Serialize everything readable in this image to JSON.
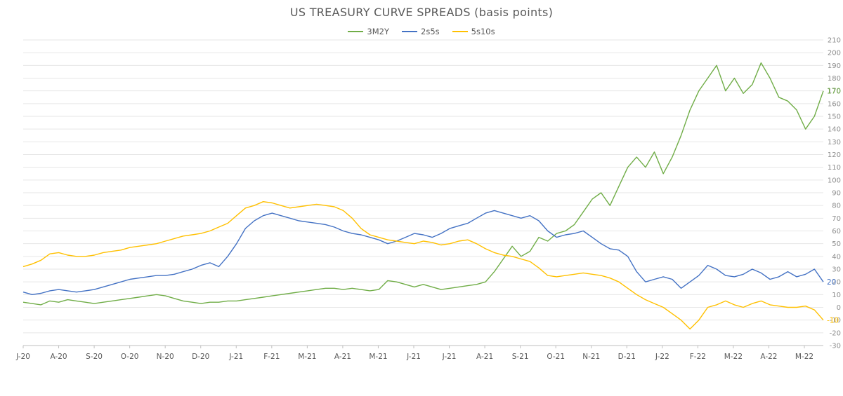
{
  "chart_data": {
    "type": "line",
    "title": "US TREASURY CURVE SPREADS (basis points)",
    "xlabel": "",
    "ylabel": "",
    "ylim": [
      -30,
      210
    ],
    "y_ticks": [
      -30,
      -20,
      -10,
      0,
      10,
      20,
      30,
      40,
      50,
      60,
      70,
      80,
      90,
      100,
      110,
      120,
      130,
      140,
      150,
      160,
      170,
      180,
      190,
      200,
      210
    ],
    "x_ticks": [
      "J-20",
      "A-20",
      "S-20",
      "O-20",
      "N-20",
      "D-20",
      "J-21",
      "F-21",
      "M-21",
      "A-21",
      "M-21",
      "J-21",
      "J-21",
      "A-21",
      "S-21",
      "O-21",
      "N-21",
      "D-21",
      "J-22",
      "F-22",
      "M-22",
      "A-22",
      "M-22"
    ],
    "grid": true,
    "legend_position": "top-center",
    "series": [
      {
        "name": "3M2Y",
        "color": "#70ad47",
        "end_label": "170",
        "values": [
          4,
          3,
          2,
          5,
          4,
          6,
          5,
          4,
          3,
          4,
          5,
          6,
          7,
          8,
          9,
          10,
          9,
          7,
          5,
          4,
          3,
          4,
          4,
          5,
          5,
          6,
          7,
          8,
          9,
          10,
          11,
          12,
          13,
          14,
          15,
          15,
          14,
          15,
          14,
          13,
          14,
          21,
          20,
          18,
          16,
          18,
          16,
          14,
          15,
          16,
          17,
          18,
          20,
          28,
          38,
          48,
          40,
          44,
          55,
          52,
          58,
          60,
          65,
          75,
          85,
          90,
          80,
          95,
          110,
          118,
          110,
          122,
          105,
          118,
          135,
          155,
          170,
          180,
          190,
          170,
          180,
          168,
          175,
          192,
          180,
          165,
          162,
          155,
          140,
          150,
          170
        ]
      },
      {
        "name": "2s5s",
        "color": "#4472c4",
        "end_label": "20",
        "values": [
          12,
          10,
          11,
          13,
          14,
          13,
          12,
          13,
          14,
          16,
          18,
          20,
          22,
          23,
          24,
          25,
          25,
          26,
          28,
          30,
          33,
          35,
          32,
          40,
          50,
          62,
          68,
          72,
          74,
          72,
          70,
          68,
          67,
          66,
          65,
          63,
          60,
          58,
          57,
          55,
          53,
          50,
          52,
          55,
          58,
          57,
          55,
          58,
          62,
          64,
          66,
          70,
          74,
          76,
          74,
          72,
          70,
          72,
          68,
          60,
          55,
          57,
          58,
          60,
          55,
          50,
          46,
          45,
          40,
          28,
          20,
          22,
          24,
          22,
          15,
          20,
          25,
          33,
          30,
          25,
          24,
          26,
          30,
          27,
          22,
          24,
          28,
          24,
          26,
          30,
          20
        ]
      },
      {
        "name": "5s10s",
        "color": "#ffc000",
        "end_label": "-10",
        "values": [
          32,
          34,
          37,
          42,
          43,
          41,
          40,
          40,
          41,
          43,
          44,
          45,
          47,
          48,
          49,
          50,
          52,
          54,
          56,
          57,
          58,
          60,
          63,
          66,
          72,
          78,
          80,
          83,
          82,
          80,
          78,
          79,
          80,
          81,
          80,
          79,
          76,
          70,
          62,
          57,
          55,
          53,
          52,
          51,
          50,
          52,
          51,
          49,
          50,
          52,
          53,
          50,
          46,
          43,
          41,
          40,
          38,
          36,
          31,
          25,
          24,
          25,
          26,
          27,
          26,
          25,
          23,
          20,
          15,
          10,
          6,
          3,
          0,
          -5,
          -10,
          -17,
          -10,
          0,
          2,
          5,
          2,
          0,
          3,
          5,
          2,
          1,
          0,
          0,
          1,
          -2,
          -10
        ]
      }
    ]
  }
}
